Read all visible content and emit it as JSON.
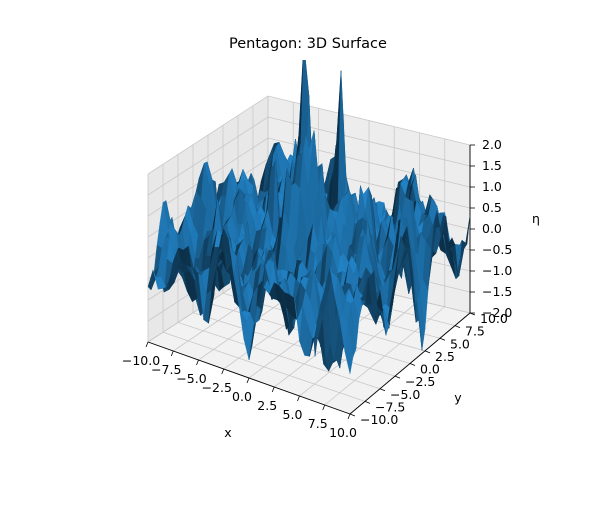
{
  "chart_data": {
    "type": "surface3d",
    "title": "Pentagon: 3D Surface",
    "xlabel": "x",
    "ylabel": "y",
    "zlabel": "η",
    "xlim": [
      -10,
      10
    ],
    "ylim": [
      -10,
      10
    ],
    "zlim": [
      -2,
      2
    ],
    "x_ticks": [
      "−10.0",
      "−7.5",
      "−5.0",
      "−2.5",
      "0.0",
      "2.5",
      "5.0",
      "7.5",
      "10.0"
    ],
    "y_ticks": [
      "−10.0",
      "−7.5",
      "−5.0",
      "−2.5",
      "0.0",
      "2.5",
      "5.0",
      "7.5",
      "10.0"
    ],
    "z_ticks": [
      "−2.0",
      "−1.5",
      "−1.0",
      "−0.5",
      "0.0",
      "0.5",
      "1.0",
      "1.5",
      "2.0"
    ],
    "grid": true,
    "surface_color": "#1f77b4",
    "peaks": [
      {
        "x": -3.8,
        "y": 0.6,
        "z": 3.4
      },
      {
        "x": -1.8,
        "y": 2.6,
        "z": 3.8
      },
      {
        "x": 0.4,
        "y": 4.4,
        "z": 3.5
      },
      {
        "x": -3.2,
        "y": -0.4,
        "z": 2.6
      },
      {
        "x": -0.6,
        "y": 2.0,
        "z": 2.8
      }
    ]
  }
}
